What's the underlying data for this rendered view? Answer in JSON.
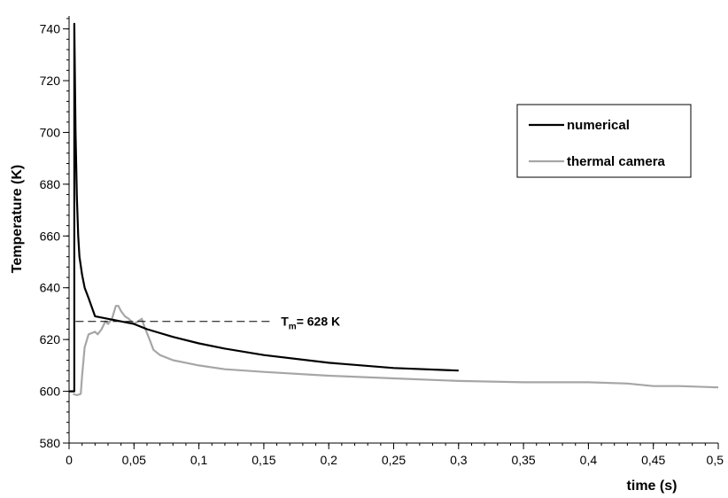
{
  "chart_data": {
    "type": "line",
    "xlabel": "time (s)",
    "ylabel": "Temperature (K)",
    "xlim": [
      0,
      0.5
    ],
    "ylim": [
      580,
      745
    ],
    "x_ticks": [
      "0",
      "0,05",
      "0,1",
      "0,15",
      "0,2",
      "0,25",
      "0,3",
      "0,35",
      "0,4",
      "0,45",
      "0,5"
    ],
    "x_tick_values": [
      0,
      0.05,
      0.1,
      0.15,
      0.2,
      0.25,
      0.3,
      0.35,
      0.4,
      0.45,
      0.5
    ],
    "y_ticks": [
      "580",
      "600",
      "620",
      "640",
      "660",
      "680",
      "700",
      "720",
      "740"
    ],
    "y_tick_values": [
      580,
      600,
      620,
      640,
      660,
      680,
      700,
      720,
      740
    ],
    "grid": false,
    "legend_position": "top-right",
    "series": [
      {
        "name": "numerical",
        "color": "#000000",
        "x": [
          0,
          0.004,
          0.004,
          0.005,
          0.006,
          0.007,
          0.008,
          0.01,
          0.012,
          0.015,
          0.02,
          0.03,
          0.04,
          0.05,
          0.06,
          0.08,
          0.1,
          0.12,
          0.15,
          0.2,
          0.25,
          0.3
        ],
        "y": [
          600,
          600,
          742,
          700,
          675,
          660,
          652,
          645,
          640,
          636,
          629,
          628,
          627,
          626,
          624,
          621,
          618.5,
          616.5,
          614,
          611,
          609,
          608
        ]
      },
      {
        "name": "thermal camera",
        "color": "#a6a6a6",
        "x": [
          0.003,
          0.006,
          0.009,
          0.01,
          0.012,
          0.015,
          0.02,
          0.022,
          0.025,
          0.028,
          0.03,
          0.033,
          0.036,
          0.038,
          0.04,
          0.043,
          0.046,
          0.05,
          0.053,
          0.056,
          0.058,
          0.062,
          0.065,
          0.07,
          0.08,
          0.09,
          0.1,
          0.12,
          0.15,
          0.2,
          0.25,
          0.3,
          0.35,
          0.4,
          0.43,
          0.45,
          0.47,
          0.5
        ],
        "y": [
          599,
          598.5,
          599,
          606,
          617,
          622,
          623,
          622,
          624,
          627,
          626,
          628,
          633,
          633,
          631,
          629,
          628,
          626,
          627,
          628,
          625,
          620,
          616,
          614,
          612,
          611,
          610,
          608.5,
          607.5,
          606,
          605,
          604,
          603.5,
          603.5,
          603,
          602,
          602,
          601.5
        ]
      }
    ],
    "annotations": [
      {
        "type": "reference-line",
        "style": "dashed",
        "y": 627,
        "x_range": [
          0.005,
          0.155
        ],
        "label_main": "T",
        "label_sub": "m",
        "label_rest": "= 628 K"
      }
    ]
  }
}
